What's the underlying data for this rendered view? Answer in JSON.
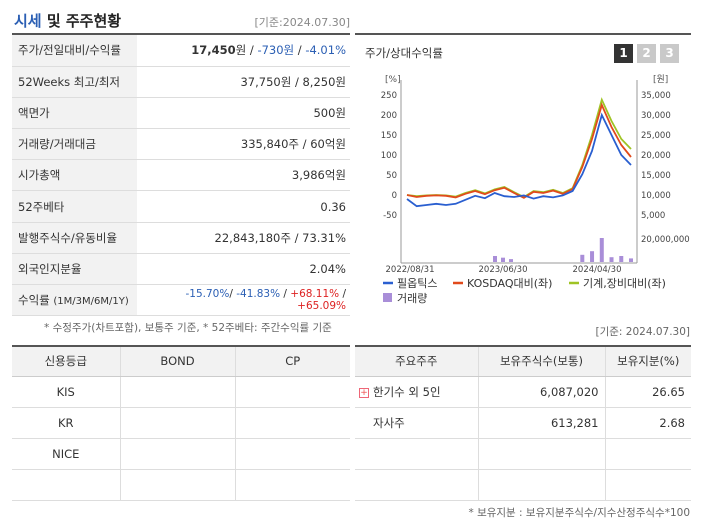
{
  "header": {
    "title_a": "시세",
    "title_b": " 및 주주현황",
    "date": "[기준:2024.07.30]"
  },
  "stats": [
    {
      "label": "주가/전일대비/수익률",
      "v1": "17,450",
      "u1": "원",
      "v2": "-730원",
      "v3": "-4.01%"
    },
    {
      "label": "52Weeks 최고/최저",
      "value": "37,750원 / 8,250원"
    },
    {
      "label": "액면가",
      "value": "500원"
    },
    {
      "label": "거래량/거래대금",
      "value": "335,840주 / 60억원"
    },
    {
      "label": "시가총액",
      "value": "3,986억원"
    },
    {
      "label": "52주베타",
      "value": "0.36"
    },
    {
      "label": "발행주식수/유동비율",
      "value": "22,843,180주 / 73.31%"
    },
    {
      "label": "외국인지분율",
      "value": "2.04%"
    },
    {
      "label": "수익률",
      "sub": "(1M/3M/6M/1Y)",
      "r1": "-15.70%",
      "r2": "-41.83%",
      "r3": "+68.11%",
      "r4": "+65.09%"
    }
  ],
  "note1": "* 수정주가(차트포함), 보통주 기준, * 52주베타: 주간수익률 기준",
  "chart": {
    "title": "주가/상대수익률",
    "tabs": [
      "1",
      "2",
      "3"
    ],
    "left_unit": "[%]",
    "right_unit": "[원]"
  },
  "chart_data": {
    "type": "line",
    "x_ticks": [
      "2022/08/31",
      "2023/06/30",
      "2024/04/30"
    ],
    "left_axis": {
      "ticks": [
        "250",
        "200",
        "150",
        "100",
        "50",
        "0",
        "-50"
      ],
      "ylim": [
        -50,
        250
      ]
    },
    "right_axis": {
      "ticks": [
        "35,000",
        "30,000",
        "25,000",
        "20,000",
        "15,000",
        "10,000",
        "5,000"
      ],
      "ylim": [
        5000,
        35000
      ]
    },
    "volume_axis": {
      "ticks": [
        "20,000,000"
      ]
    },
    "series": [
      {
        "name": "필옵틱스",
        "color": "#2a5fd0",
        "values": [
          -10,
          -28,
          -25,
          -22,
          -25,
          -22,
          -12,
          -2,
          -8,
          5,
          -3,
          -5,
          -1,
          -9,
          -3,
          -6,
          -1,
          10,
          52,
          110,
          200,
          150,
          100,
          75
        ]
      },
      {
        "name": "KOSDAQ대비(좌)",
        "color": "#e14a1c",
        "values": [
          0,
          -5,
          -2,
          -1,
          -2,
          -6,
          3,
          10,
          2,
          12,
          18,
          5,
          -7,
          8,
          5,
          11,
          3,
          15,
          70,
          140,
          225,
          170,
          125,
          95
        ]
      },
      {
        "name": "기계,장비대비(좌)",
        "color": "#9fc424",
        "values": [
          0,
          -3,
          -1,
          0,
          -1,
          -4,
          5,
          12,
          4,
          14,
          20,
          7,
          -5,
          10,
          7,
          13,
          5,
          17,
          75,
          150,
          238,
          185,
          140,
          115
        ]
      }
    ],
    "volume": {
      "name": "거래량",
      "color": "#a98ed8",
      "values": [
        0,
        0,
        0,
        0,
        0,
        0,
        0,
        0,
        0,
        0,
        0,
        0,
        0,
        0,
        0,
        0,
        0,
        0,
        0.3,
        0.45,
        1,
        0.2,
        0.25,
        0.15
      ],
      "bars_2023": [
        0.25,
        0.18,
        0.12
      ]
    }
  },
  "note2": "[기준: 2024.07.30]",
  "credit": {
    "headers": [
      "신용등급",
      "BOND",
      "CP"
    ],
    "rows": [
      [
        "KIS",
        "",
        ""
      ],
      [
        "KR",
        "",
        ""
      ],
      [
        "NICE",
        "",
        ""
      ],
      [
        "",
        "",
        ""
      ]
    ]
  },
  "holders": {
    "headers": [
      "주요주주",
      "보유주식수(보통)",
      "보유지분(%)"
    ],
    "rows": [
      {
        "name": "한기수 외 5인",
        "shares": "6,087,020",
        "pct": "26.65",
        "expand": "+"
      },
      {
        "name": "자사주",
        "shares": "613,281",
        "pct": "2.68"
      }
    ]
  },
  "note3": "* 보유지분 : 보유지분주식수/지수산정주식수*100"
}
